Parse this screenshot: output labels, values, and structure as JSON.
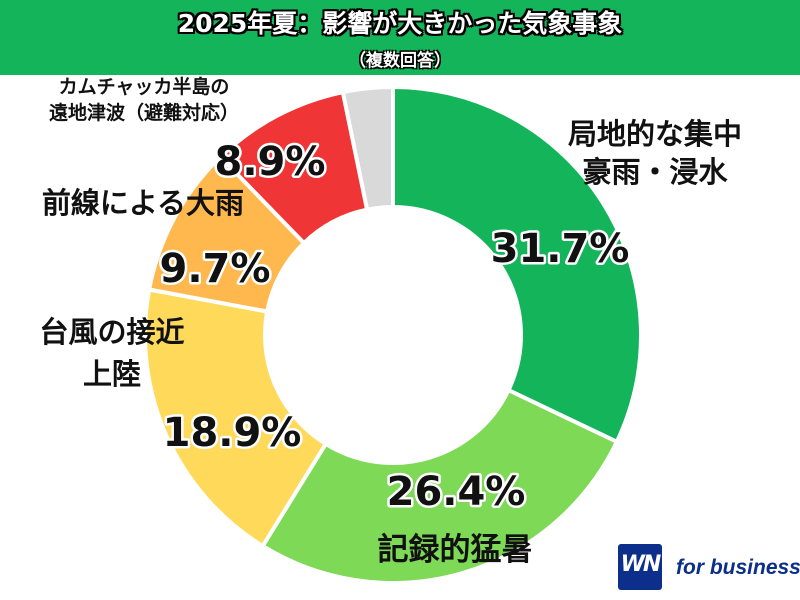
{
  "header": {
    "title": "2025年夏：影響が大きかった気象事象",
    "subtitle": "（複数回答）"
  },
  "colors": {
    "header_bg": "#14b45a"
  },
  "chart_data": {
    "type": "pie",
    "title": "2025年夏：影響が大きかった気象事象",
    "subtitle": "（複数回答）",
    "donut": true,
    "slices": [
      {
        "label_lines": [
          "局地的な集中",
          "豪雨・浸水"
        ],
        "value": 31.7,
        "label": "31.7%",
        "color": "#14b45a"
      },
      {
        "label_lines": [
          "記録的猛暑"
        ],
        "value": 26.4,
        "label": "26.4%",
        "color": "#7ed957"
      },
      {
        "label_lines": [
          "台風の接近",
          "上陸"
        ],
        "value": 18.9,
        "label": "18.9%",
        "color": "#ffd95a"
      },
      {
        "label_lines": [
          "前線による大雨"
        ],
        "value": 9.7,
        "label": "9.7%",
        "color": "#ffb84d"
      },
      {
        "label_lines": [
          "8.9%"
        ],
        "value": 8.9,
        "label": "8.9%",
        "color": "#ef3535"
      },
      {
        "label_lines": [
          "カムチャッカ半島の",
          "遠地津波（避難対応）"
        ],
        "value": 3.2,
        "label": "",
        "color": "#d9d9d9"
      }
    ]
  },
  "branding": {
    "logo_mark": "WN",
    "logo_text": "for business"
  }
}
